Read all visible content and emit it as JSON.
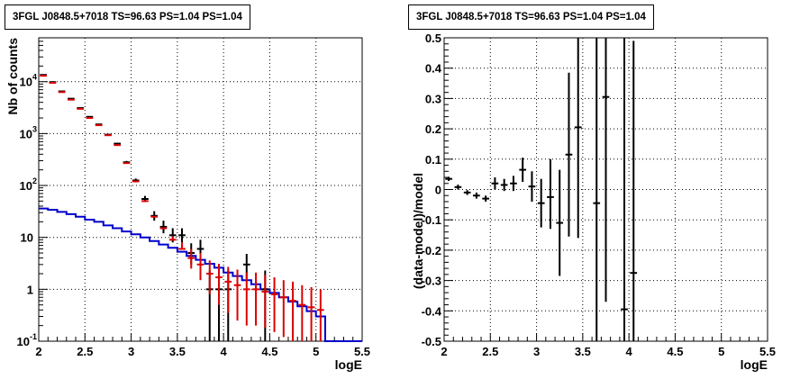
{
  "left_panel": {
    "title": "3FGL J0848.5+7018 TS=96.63 PS=1.04 PS=1.04"
  },
  "right_panel": {
    "title": "3FGL J0848.5+7018 TS=96.63 PS=1.04 PS=1.04"
  },
  "colors": {
    "data": "#000000",
    "total_model": "#dd0000",
    "source_model": "#0000cc",
    "grid": "#000000"
  },
  "chart_data": [
    {
      "type": "scatter",
      "name": "counts-spectrum",
      "xlabel": "logE",
      "ylabel": "Nb of counts",
      "xlim": [
        2,
        5.5
      ],
      "ylim": [
        0.1,
        70000
      ],
      "yscale": "log",
      "grid": true,
      "x_ticks": [
        "2",
        "2.5",
        "3",
        "3.5",
        "4",
        "4.5",
        "5",
        "5.5"
      ],
      "y_ticks": [
        {
          "v": 0.1,
          "label": "10",
          "exp": "-1"
        },
        {
          "v": 1,
          "label": "1",
          "exp": ""
        },
        {
          "v": 10,
          "label": "10",
          "exp": ""
        },
        {
          "v": 100,
          "label": "10",
          "exp": "2"
        },
        {
          "v": 1000,
          "label": "10",
          "exp": "3"
        },
        {
          "v": 10000,
          "label": "10",
          "exp": "4"
        }
      ],
      "bin_width": 0.1,
      "data": {
        "x": [
          2.05,
          2.15,
          2.25,
          2.35,
          2.45,
          2.55,
          2.65,
          2.75,
          2.85,
          2.95,
          3.05,
          3.15,
          3.25,
          3.35,
          3.45,
          3.55,
          3.65,
          3.75,
          3.85,
          3.95,
          4.05,
          4.15,
          4.25,
          4.35,
          4.45
        ],
        "y": [
          13500,
          9800,
          6500,
          4700,
          3100,
          2100,
          1500,
          950,
          640,
          280,
          125,
          55,
          26,
          16,
          11,
          11,
          5,
          6,
          1,
          1,
          1,
          0.1,
          3,
          0.1,
          1
        ],
        "ylo": [
          13300,
          9650,
          6400,
          4620,
          3040,
          2060,
          1460,
          920,
          615,
          265,
          115,
          48,
          21,
          12,
          8,
          8,
          3,
          3.5,
          0.1,
          0.1,
          0.1,
          0.1,
          1.6,
          0.1,
          0.1
        ],
        "yhi": [
          13700,
          9950,
          6600,
          4780,
          3160,
          2140,
          1540,
          980,
          665,
          297,
          136,
          63,
          32,
          21,
          15,
          15,
          7.7,
          9,
          2.3,
          2.3,
          2.3,
          0.1,
          4.8,
          0.1,
          2.3
        ]
      },
      "model_total": {
        "x": [
          2.05,
          2.15,
          2.25,
          2.35,
          2.45,
          2.55,
          2.65,
          2.75,
          2.85,
          2.95,
          3.05,
          3.15,
          3.25,
          3.35,
          3.45,
          3.55,
          3.65,
          3.75,
          3.85,
          3.95,
          4.05,
          4.15,
          4.25,
          4.35,
          4.45,
          4.55,
          4.65,
          4.75,
          4.85,
          4.95,
          5.05
        ],
        "y": [
          13000,
          9500,
          6300,
          4500,
          3000,
          2000,
          1450,
          930,
          600,
          270,
          120,
          50,
          25,
          15,
          9,
          6,
          4,
          3,
          2,
          1.7,
          1.4,
          1.2,
          1.0,
          1.0,
          0.9,
          0.8,
          0.7,
          0.6,
          0.5,
          0.45,
          0.4
        ],
        "ylo": [
          13000,
          9500,
          6300,
          4500,
          3000,
          2000,
          1450,
          930,
          600,
          270,
          120,
          50,
          25,
          15,
          9,
          6,
          2.5,
          1.5,
          0.8,
          0.5,
          0.35,
          0.25,
          0.2,
          0.2,
          0.18,
          0.15,
          0.12,
          0.1,
          0.1,
          0.1,
          0.1
        ],
        "yhi": [
          13000,
          9500,
          6300,
          4500,
          3000,
          2000,
          1450,
          930,
          600,
          270,
          120,
          50,
          25,
          15,
          10.5,
          8,
          6,
          5,
          3.6,
          3.1,
          2.7,
          2.4,
          2.1,
          2.1,
          1.9,
          1.7,
          1.5,
          1.4,
          1.2,
          1.1,
          1.0
        ]
      },
      "model_source": {
        "edges": [
          2.0,
          2.1,
          2.2,
          2.3,
          2.4,
          2.5,
          2.6,
          2.7,
          2.8,
          2.9,
          3.0,
          3.1,
          3.2,
          3.3,
          3.4,
          3.5,
          3.6,
          3.7,
          3.8,
          3.9,
          4.0,
          4.1,
          4.2,
          4.3,
          4.4,
          4.5,
          4.6,
          4.7,
          4.8,
          4.9,
          5.0,
          5.1,
          5.2,
          5.3,
          5.4,
          5.5
        ],
        "y": [
          36,
          34,
          31,
          28,
          25,
          22,
          20,
          17,
          15,
          13,
          11.5,
          10,
          8.5,
          7.3,
          6.3,
          5.3,
          4.4,
          3.7,
          3.1,
          2.6,
          2.1,
          1.8,
          1.5,
          1.25,
          1.0,
          0.85,
          0.7,
          0.58,
          0.47,
          0.38,
          0.3,
          0.1,
          0.1,
          0.1,
          0.1
        ]
      }
    },
    {
      "type": "scatter",
      "name": "residuals",
      "xlabel": "logE",
      "ylabel": "(data-model)/model",
      "xlim": [
        2,
        5.5
      ],
      "ylim": [
        -0.5,
        0.5
      ],
      "grid": true,
      "x_ticks": [
        "2",
        "2.5",
        "3",
        "3.5",
        "4",
        "4.5",
        "5",
        "5.5"
      ],
      "y_ticks": [
        "-0.5",
        "-0.4",
        "-0.3",
        "-0.2",
        "-0.1",
        "0",
        "0.1",
        "0.2",
        "0.3",
        "0.4",
        "0.5"
      ],
      "bin_width": 0.1,
      "x": [
        2.05,
        2.15,
        2.25,
        2.35,
        2.45,
        2.55,
        2.65,
        2.75,
        2.85,
        2.95,
        3.05,
        3.15,
        3.25,
        3.35,
        3.45,
        3.65,
        3.75,
        3.95,
        4.05
      ],
      "y": [
        0.035,
        0.008,
        -0.01,
        -0.02,
        -0.03,
        0.02,
        0.015,
        0.02,
        0.065,
        0.01,
        -0.045,
        -0.025,
        -0.11,
        0.115,
        0.205,
        -0.045,
        0.305,
        -0.395,
        -0.275
      ],
      "ylo": [
        0.028,
        0.0,
        -0.018,
        -0.03,
        -0.04,
        0.0,
        -0.005,
        -0.005,
        0.025,
        -0.04,
        -0.125,
        -0.13,
        -0.285,
        -0.155,
        -0.16,
        -0.5,
        -0.37,
        -0.5,
        -0.5
      ],
      "yhi": [
        0.042,
        0.016,
        -0.002,
        -0.01,
        -0.02,
        0.04,
        0.035,
        0.045,
        0.105,
        0.06,
        0.035,
        0.1,
        0.065,
        0.385,
        0.5,
        0.5,
        0.5,
        0.5,
        0.49
      ]
    }
  ]
}
